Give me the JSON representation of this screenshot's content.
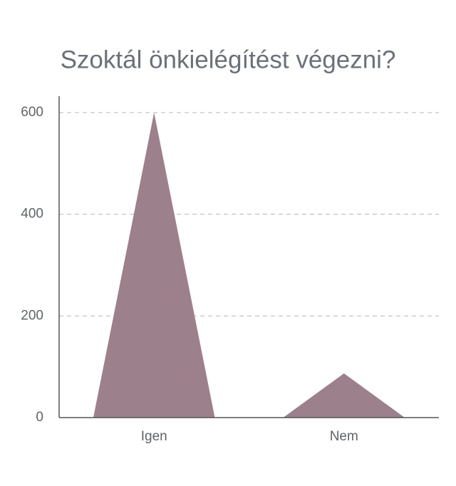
{
  "chart_data": {
    "type": "bar",
    "title": "Szoktál önkielégítést végezni?",
    "categories": [
      "Igen",
      "Nem"
    ],
    "values": [
      600,
      87
    ],
    "color": "#9c808b",
    "ylim": [
      0,
      600
    ],
    "yticks": [
      0,
      200,
      400,
      600
    ],
    "grid": true
  }
}
